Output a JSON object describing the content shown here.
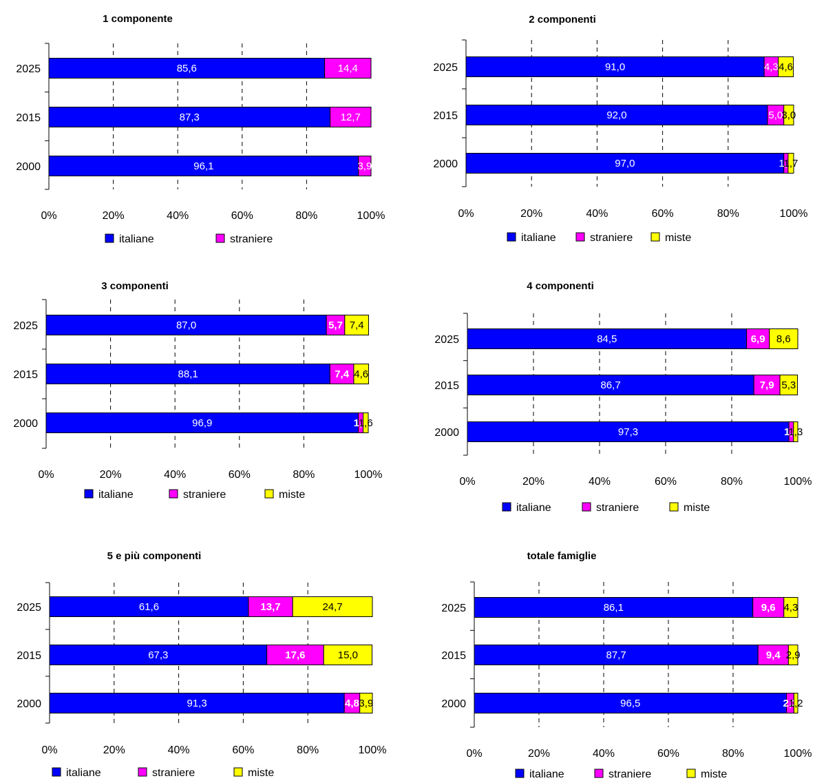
{
  "colors": {
    "italiane": "#0000ff",
    "straniere": "#ff00ff",
    "miste": "#ffff00"
  },
  "chart_data": [
    {
      "type": "bar",
      "orientation": "horizontal",
      "stacked": "percent",
      "title": "1 componente",
      "categories": [
        "2025",
        "2015",
        "2000"
      ],
      "series": [
        {
          "name": "italiane",
          "values": [
            85.6,
            87.3,
            96.1
          ],
          "labels": [
            "85,6",
            "87,3",
            "96,1"
          ]
        },
        {
          "name": "straniere",
          "values": [
            14.4,
            12.7,
            3.9
          ],
          "labels": [
            "14,4",
            "12,7",
            "3,9"
          ]
        }
      ],
      "xticks": [
        "0%",
        "20%",
        "40%",
        "60%",
        "80%",
        "100%"
      ],
      "xlim": [
        0,
        100
      ],
      "grid": "vertical dashed",
      "legend": "bottom"
    },
    {
      "type": "bar",
      "orientation": "horizontal",
      "stacked": "percent",
      "title": "2 componenti",
      "categories": [
        "2025",
        "2015",
        "2000"
      ],
      "series": [
        {
          "name": "italiane",
          "values": [
            91.0,
            92.0,
            97.0
          ],
          "labels": [
            "91,0",
            "92,0",
            "97,0"
          ]
        },
        {
          "name": "straniere",
          "values": [
            4.3,
            5.0,
            1.3
          ],
          "labels": [
            "4,3",
            "5,0",
            "1,3"
          ]
        },
        {
          "name": "miste",
          "values": [
            4.6,
            3.0,
            1.7
          ],
          "labels": [
            "4,6",
            "3,0",
            "1,7"
          ]
        }
      ],
      "xticks": [
        "0%",
        "20%",
        "40%",
        "60%",
        "80%",
        "100%"
      ],
      "xlim": [
        0,
        100
      ],
      "grid": "vertical dashed",
      "legend": "bottom"
    },
    {
      "type": "bar",
      "orientation": "horizontal",
      "stacked": "percent",
      "title": "3 componenti",
      "categories": [
        "2025",
        "2015",
        "2000"
      ],
      "series": [
        {
          "name": "italiane",
          "values": [
            87.0,
            88.1,
            96.9
          ],
          "labels": [
            "87,0",
            "88,1",
            "96,9"
          ]
        },
        {
          "name": "straniere",
          "values": [
            5.7,
            7.4,
            1.5
          ],
          "labels": [
            "5,7",
            "7,4",
            "1,5"
          ]
        },
        {
          "name": "miste",
          "values": [
            7.4,
            4.6,
            1.6
          ],
          "labels": [
            "7,4",
            "4,6",
            "1,6"
          ]
        }
      ],
      "xticks": [
        "0%",
        "20%",
        "40%",
        "60%",
        "80%",
        "100%"
      ],
      "xlim": [
        0,
        100
      ],
      "grid": "vertical dashed",
      "legend": "bottom"
    },
    {
      "type": "bar",
      "orientation": "horizontal",
      "stacked": "percent",
      "title": "4 componenti",
      "categories": [
        "2025",
        "2015",
        "2000"
      ],
      "series": [
        {
          "name": "italiane",
          "values": [
            84.5,
            86.7,
            97.3
          ],
          "labels": [
            "84,5",
            "86,7",
            "97,3"
          ]
        },
        {
          "name": "straniere",
          "values": [
            6.9,
            7.9,
            1.4
          ],
          "labels": [
            "6,9",
            "7,9",
            "1,4"
          ]
        },
        {
          "name": "miste",
          "values": [
            8.6,
            5.3,
            1.3
          ],
          "labels": [
            "8,6",
            "5,3",
            "1,3"
          ]
        }
      ],
      "xticks": [
        "0%",
        "20%",
        "40%",
        "60%",
        "80%",
        "100%"
      ],
      "xlim": [
        0,
        100
      ],
      "grid": "vertical dashed",
      "legend": "bottom"
    },
    {
      "type": "bar",
      "orientation": "horizontal",
      "stacked": "percent",
      "title": "5 e più componenti",
      "categories": [
        "2025",
        "2015",
        "2000"
      ],
      "series": [
        {
          "name": "italiane",
          "values": [
            61.6,
            67.3,
            91.3
          ],
          "labels": [
            "61,6",
            "67,3",
            "91,3"
          ]
        },
        {
          "name": "straniere",
          "values": [
            13.7,
            17.6,
            4.8
          ],
          "labels": [
            "13,7",
            "17,6",
            "4,8"
          ]
        },
        {
          "name": "miste",
          "values": [
            24.7,
            15.0,
            3.9
          ],
          "labels": [
            "24,7",
            "15,0",
            "3,9"
          ]
        }
      ],
      "xticks": [
        "0%",
        "20%",
        "40%",
        "60%",
        "80%",
        "100%"
      ],
      "xlim": [
        0,
        100
      ],
      "grid": "vertical dashed",
      "legend": "bottom"
    },
    {
      "type": "bar",
      "orientation": "horizontal",
      "stacked": "percent",
      "title": "totale famiglie",
      "categories": [
        "2025",
        "2015",
        "2000"
      ],
      "series": [
        {
          "name": "italiane",
          "values": [
            86.1,
            87.7,
            96.5
          ],
          "labels": [
            "86,1",
            "87,7",
            "96,5"
          ]
        },
        {
          "name": "straniere",
          "values": [
            9.6,
            9.4,
            2.3
          ],
          "labels": [
            "9,6",
            "9,4",
            "2,3"
          ]
        },
        {
          "name": "miste",
          "values": [
            4.3,
            2.9,
            1.2
          ],
          "labels": [
            "4,3",
            "2,9",
            "1,2"
          ]
        }
      ],
      "xticks": [
        "0%",
        "20%",
        "40%",
        "60%",
        "80%",
        "100%"
      ],
      "xlim": [
        0,
        100
      ],
      "grid": "vertical dashed",
      "legend": "bottom"
    }
  ]
}
